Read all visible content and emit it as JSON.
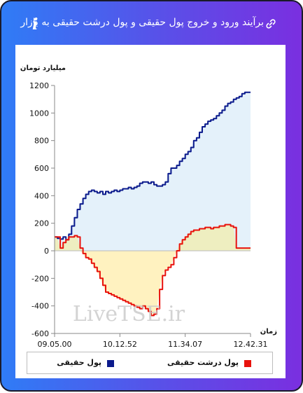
{
  "header": {
    "title": "برآیند ورود و خروج پول حقیقی و پول درشت حقیقی به بازار",
    "info_glyph": "i",
    "link_icon": "link-icon",
    "info_icon": "info-icon"
  },
  "watermark": "LiveTSE.ir",
  "colors": {
    "series_real": "#0b1a8c",
    "series_big": "#e8120c",
    "fill_real": "#e4f1fa",
    "fill_big_pos": "#eeeec0",
    "fill_big_neg": "#fff2c0"
  },
  "chart_data": {
    "type": "line",
    "title": "",
    "ylabel": "میلیارد تومان",
    "xlabel": "زمان",
    "ylim": [
      -600,
      1200
    ],
    "yticks": [
      -600,
      -400,
      -200,
      0,
      200,
      400,
      600,
      800,
      1000,
      1200
    ],
    "xticks": [
      "09.05.00",
      "10.12.52",
      "11.34.07",
      "12.42.31"
    ],
    "grid": false,
    "legend_position": "bottom",
    "series": [
      {
        "name": "پول حقیقی",
        "color": "#0b1a8c",
        "values": [
          100,
          90,
          85,
          100,
          80,
          120,
          180,
          240,
          300,
          340,
          380,
          410,
          430,
          440,
          430,
          420,
          430,
          410,
          430,
          420,
          430,
          440,
          430,
          440,
          450,
          450,
          460,
          450,
          460,
          470,
          490,
          500,
          500,
          490,
          500,
          480,
          470,
          470,
          480,
          500,
          560,
          600,
          600,
          620,
          650,
          670,
          700,
          720,
          750,
          800,
          820,
          860,
          900,
          920,
          940,
          950,
          960,
          980,
          1000,
          1020,
          1050,
          1070,
          1080,
          1100,
          1110,
          1120,
          1140,
          1150,
          1150,
          1150
        ]
      },
      {
        "name": "پول درشت حقیقی",
        "color": "#e8120c",
        "values": [
          100,
          100,
          20,
          60,
          80,
          100,
          100,
          110,
          100,
          20,
          -20,
          -50,
          -60,
          -90,
          -120,
          -150,
          -200,
          -250,
          -300,
          -310,
          -320,
          -330,
          -340,
          -350,
          -360,
          -370,
          -380,
          -390,
          -400,
          -410,
          -420,
          -400,
          -420,
          -440,
          -470,
          -460,
          -420,
          -280,
          -180,
          -140,
          -120,
          -100,
          -50,
          0,
          50,
          80,
          100,
          120,
          140,
          150,
          150,
          160,
          160,
          170,
          170,
          160,
          170,
          170,
          180,
          180,
          190,
          190,
          180,
          170,
          20,
          20,
          20,
          20,
          20,
          20
        ]
      }
    ]
  }
}
